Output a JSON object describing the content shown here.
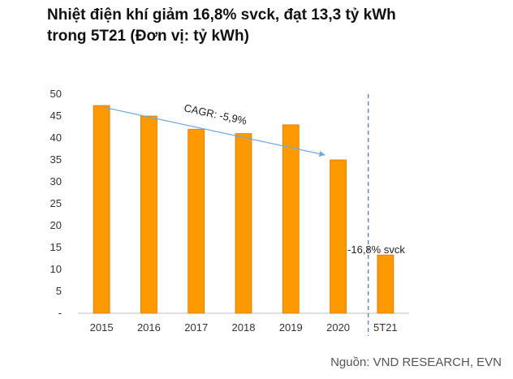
{
  "title": {
    "line1": "Nhiệt điện khí giảm 16,8% svck, đạt 13,3 tỷ kWh",
    "line2": "trong 5T21 (Đơn vị: tỷ kWh)"
  },
  "source": "Nguồn: VND RESEARCH, EVN",
  "chart_data": {
    "type": "bar",
    "categories": [
      "2015",
      "2016",
      "2017",
      "2018",
      "2019",
      "2020",
      "5T21"
    ],
    "values": [
      47.4,
      45.0,
      42.0,
      41.0,
      43.0,
      35.0,
      13.3
    ],
    "ylim": [
      0,
      50
    ],
    "yticks": [
      0,
      5,
      10,
      15,
      20,
      25,
      30,
      35,
      40,
      45,
      50
    ],
    "ytick_labels": [
      "-",
      "5",
      "10",
      "15",
      "20",
      "25",
      "30",
      "35",
      "40",
      "45",
      "50"
    ],
    "bar_color": "#FF9900",
    "bar_edge_color": "#E07800",
    "trend_color": "#6FA8DC",
    "separator_color": "#4472C4",
    "grid": false,
    "annotations": {
      "cagr": "CAGR: -5,9%",
      "yoy": "-16,8% svck"
    }
  }
}
